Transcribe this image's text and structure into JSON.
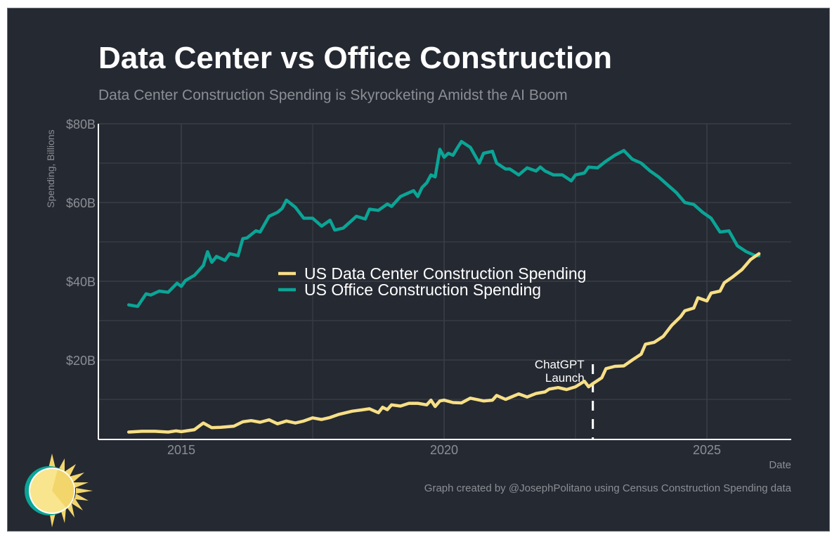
{
  "title": "Data Center vs Office Construction",
  "subtitle": "Data Center Construction Spending is Skyrocketing Amidst the AI Boom",
  "caption": "Graph created by @JosephPolitano using Census Construction Spending data",
  "logo": "sun-logo-icon",
  "colors": {
    "background": "#252932",
    "data_center": "#f7df86",
    "office": "#0aa596",
    "grid": "#3a3e46",
    "axis": "#ffffff",
    "muted_text": "#8b8e94"
  },
  "chart_data": {
    "type": "line",
    "title": "Data Center vs Office Construction",
    "subtitle": "Data Center Construction Spending is Skyrocketing Amidst the AI Boom",
    "xlabel": "Date",
    "ylabel": "Spending, Billions",
    "xlim": [
      2013.4,
      2027.2
    ],
    "ylim": [
      0,
      80
    ],
    "x_ticks": [
      2015,
      2020,
      2025
    ],
    "x_tick_labels": [
      "2015",
      "2020",
      "2025"
    ],
    "x_minor_ticks": [
      2017.5,
      2022.5
    ],
    "y_ticks": [
      20,
      40,
      60,
      80
    ],
    "y_tick_labels": [
      "$20B",
      "$40B",
      "$60B",
      "$80B"
    ],
    "y_minor_ticks": [
      10,
      30,
      50,
      70
    ],
    "grid": true,
    "legend_position": "center-left",
    "annotation": {
      "label_line1": "ChatGPT",
      "label_line2": "Launch",
      "x": 2022.83,
      "style": "dashed-vertical"
    },
    "series": [
      {
        "name": "US Data Center Construction Spending",
        "color": "#f7df86",
        "x": [
          2014.0,
          2014.25,
          2014.5,
          2014.75,
          2014.9,
          2015.0,
          2015.25,
          2015.42,
          2015.58,
          2015.75,
          2016.0,
          2016.17,
          2016.33,
          2016.5,
          2016.67,
          2016.83,
          2017.0,
          2017.17,
          2017.33,
          2017.5,
          2017.67,
          2017.83,
          2018.0,
          2018.25,
          2018.42,
          2018.58,
          2018.75,
          2018.83,
          2018.92,
          2019.0,
          2019.17,
          2019.33,
          2019.5,
          2019.67,
          2019.75,
          2019.83,
          2019.92,
          2020.0,
          2020.17,
          2020.33,
          2020.5,
          2020.75,
          2020.92,
          2021.0,
          2021.17,
          2021.33,
          2021.42,
          2021.58,
          2021.75,
          2021.92,
          2022.0,
          2022.17,
          2022.33,
          2022.5,
          2022.67,
          2022.75,
          2022.83,
          2023.0,
          2023.08,
          2023.25,
          2023.42,
          2023.58,
          2023.75,
          2023.83,
          2024.0,
          2024.17,
          2024.33,
          2024.5,
          2024.58,
          2024.75,
          2024.83,
          2025.0,
          2025.08,
          2025.25,
          2025.33,
          2025.5,
          2025.67,
          2025.83,
          2025.99
        ],
        "values": [
          1.7,
          1.9,
          1.9,
          1.7,
          2.0,
          1.8,
          2.3,
          4.0,
          2.8,
          2.9,
          3.2,
          4.3,
          4.6,
          4.2,
          4.8,
          3.8,
          4.5,
          4.0,
          4.5,
          5.3,
          4.9,
          5.4,
          6.2,
          7.0,
          7.3,
          7.6,
          6.6,
          8.0,
          7.4,
          8.6,
          8.3,
          9.0,
          9.0,
          8.6,
          9.8,
          8.2,
          9.6,
          9.8,
          9.2,
          9.1,
          10.3,
          9.6,
          9.8,
          11.0,
          10.0,
          10.9,
          11.4,
          10.6,
          11.5,
          11.9,
          12.6,
          13.0,
          12.5,
          13.2,
          14.6,
          13.2,
          14.0,
          15.5,
          17.8,
          18.4,
          18.5,
          20.0,
          21.5,
          24.0,
          24.5,
          26.0,
          28.8,
          31.0,
          32.5,
          33.2,
          35.8,
          35.0,
          37.0,
          37.5,
          39.6,
          41.2,
          43.0,
          45.5,
          47.0
        ]
      },
      {
        "name": "US Office Construction Spending",
        "color": "#0aa596",
        "x": [
          2014.0,
          2014.17,
          2014.33,
          2014.42,
          2014.58,
          2014.75,
          2014.92,
          2015.0,
          2015.08,
          2015.25,
          2015.42,
          2015.5,
          2015.58,
          2015.67,
          2015.83,
          2015.92,
          2016.08,
          2016.17,
          2016.25,
          2016.42,
          2016.5,
          2016.67,
          2016.83,
          2016.92,
          2017.0,
          2017.17,
          2017.33,
          2017.5,
          2017.67,
          2017.83,
          2017.92,
          2018.08,
          2018.25,
          2018.33,
          2018.5,
          2018.58,
          2018.75,
          2018.92,
          2019.0,
          2019.17,
          2019.25,
          2019.42,
          2019.5,
          2019.58,
          2019.67,
          2019.75,
          2019.83,
          2019.92,
          2020.0,
          2020.08,
          2020.17,
          2020.25,
          2020.33,
          2020.5,
          2020.67,
          2020.75,
          2020.92,
          2021.0,
          2021.17,
          2021.25,
          2021.42,
          2021.58,
          2021.75,
          2021.83,
          2021.92,
          2022.08,
          2022.25,
          2022.42,
          2022.5,
          2022.67,
          2022.75,
          2022.92,
          2023.08,
          2023.25,
          2023.42,
          2023.58,
          2023.75,
          2023.92,
          2024.08,
          2024.25,
          2024.42,
          2024.58,
          2024.75,
          2024.92,
          2025.08,
          2025.25,
          2025.42,
          2025.58,
          2025.75,
          2025.92,
          2025.99
        ],
        "values": [
          34.0,
          33.6,
          36.8,
          36.5,
          37.5,
          37.2,
          39.5,
          38.7,
          40.2,
          41.5,
          44.0,
          47.5,
          44.8,
          46.3,
          45.3,
          47.0,
          46.5,
          50.8,
          51.0,
          52.8,
          52.5,
          56.5,
          57.5,
          58.5,
          60.6,
          58.8,
          56.0,
          56.0,
          54.0,
          55.5,
          53.0,
          53.5,
          55.5,
          56.5,
          55.8,
          58.3,
          58.0,
          59.6,
          59.0,
          61.5,
          62.0,
          63.0,
          61.5,
          63.8,
          65.0,
          67.0,
          66.5,
          73.5,
          71.5,
          72.5,
          72.0,
          73.8,
          75.5,
          74.0,
          70.0,
          72.5,
          73.0,
          70.0,
          68.5,
          68.5,
          67.0,
          68.8,
          68.0,
          69.0,
          68.0,
          67.0,
          67.0,
          65.5,
          67.0,
          67.5,
          69.0,
          68.8,
          70.5,
          72.0,
          73.2,
          71.0,
          70.0,
          68.0,
          66.5,
          64.5,
          62.5,
          60.0,
          59.5,
          57.5,
          56.0,
          52.5,
          52.8,
          49.0,
          47.5,
          46.5,
          46.5
        ]
      }
    ]
  }
}
